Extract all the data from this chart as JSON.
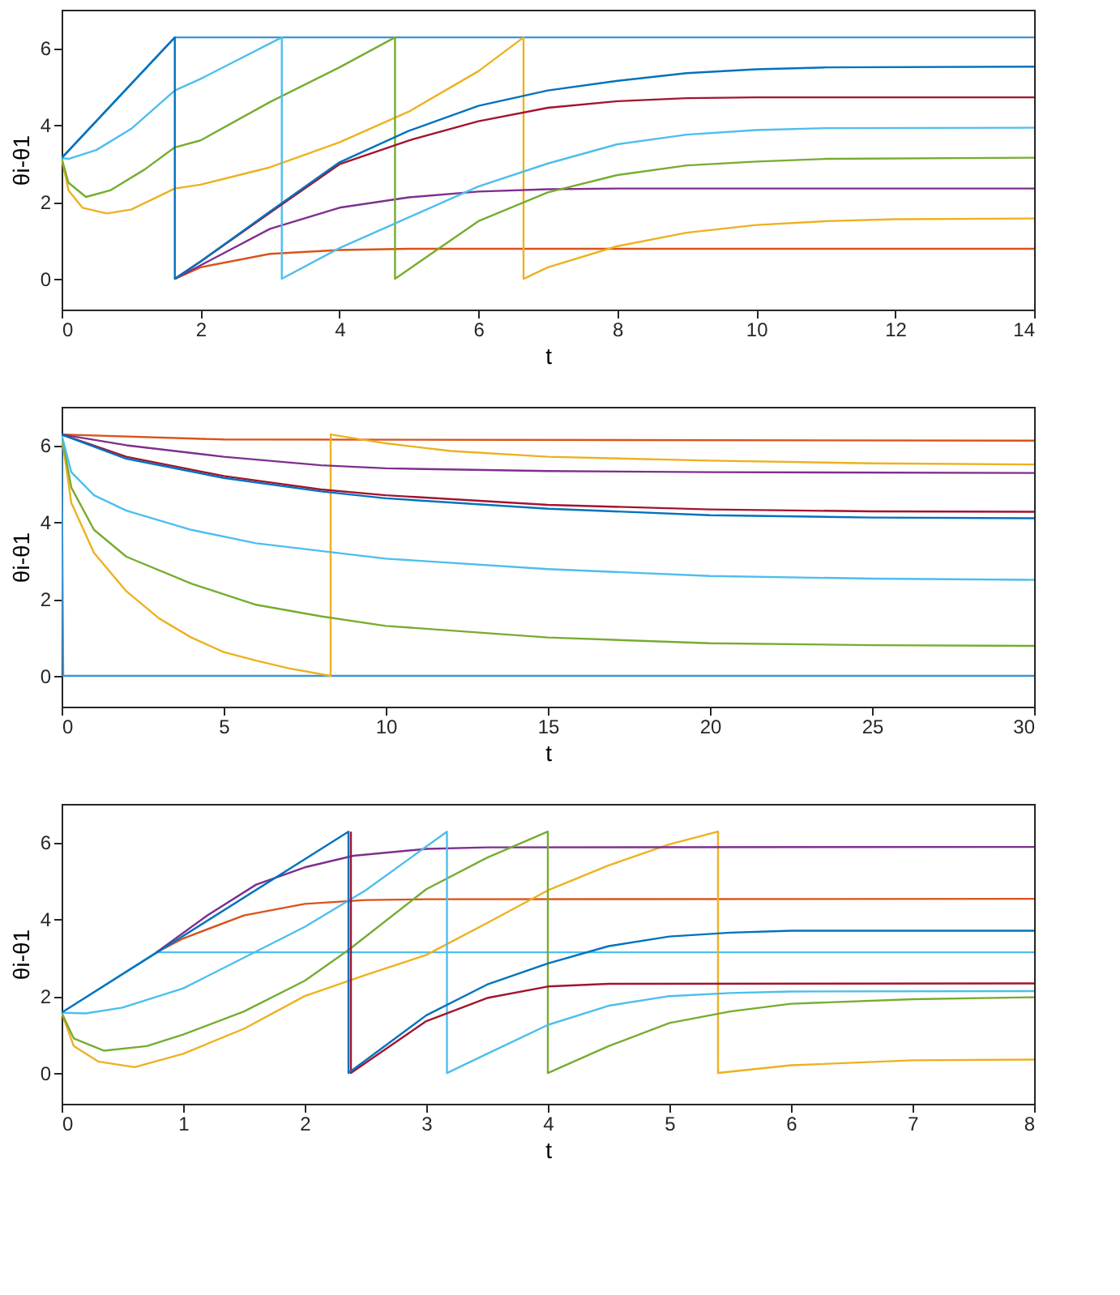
{
  "chart_data": [
    {
      "type": "line",
      "xlabel": "t",
      "ylabel": "θi-θ1",
      "xlim": [
        0,
        14
      ],
      "xticks": [
        0,
        2,
        4,
        6,
        8,
        10,
        12,
        14
      ],
      "ylim": [
        -0.8,
        7
      ],
      "yticks": [
        0,
        2,
        4,
        6
      ],
      "grid": false,
      "series": [
        {
          "color": "#3d95d8",
          "x": [
            0,
            1.63,
            14
          ],
          "values": [
            3.14,
            6.28,
            6.28
          ]
        },
        {
          "color": "#d95319",
          "x": [
            1.63,
            2,
            3,
            4,
            5,
            14
          ],
          "values": [
            0,
            0.3,
            0.65,
            0.75,
            0.78,
            0.78
          ]
        },
        {
          "color": "#edb120",
          "x": [
            0,
            0.1,
            0.3,
            0.65,
            1,
            1.63,
            2,
            3,
            4,
            5,
            6,
            6.65,
            6.65,
            7,
            8,
            9,
            10,
            11,
            12,
            14
          ],
          "values": [
            3.14,
            2.3,
            1.85,
            1.7,
            1.8,
            2.35,
            2.45,
            2.9,
            3.55,
            4.35,
            5.4,
            6.28,
            0,
            0.3,
            0.85,
            1.2,
            1.4,
            1.5,
            1.55,
            1.57
          ]
        },
        {
          "color": "#7e2f8e",
          "x": [
            1.63,
            2,
            3,
            4,
            5,
            6,
            7,
            8,
            14
          ],
          "values": [
            0,
            0.35,
            1.3,
            1.85,
            2.12,
            2.27,
            2.33,
            2.35,
            2.35
          ]
        },
        {
          "color": "#77ac30",
          "x": [
            0,
            0.1,
            0.35,
            0.7,
            1.2,
            1.63,
            2,
            3,
            4,
            4.8,
            4.8,
            6,
            7,
            8,
            9,
            10,
            11,
            14
          ],
          "values": [
            3.14,
            2.5,
            2.13,
            2.3,
            2.85,
            3.42,
            3.6,
            4.6,
            5.5,
            6.28,
            0,
            1.5,
            2.25,
            2.7,
            2.95,
            3.05,
            3.12,
            3.15
          ]
        },
        {
          "color": "#4dbeee",
          "x": [
            0,
            0.1,
            0.5,
            1,
            1.63,
            2,
            3.17,
            3.17,
            4,
            5,
            6,
            7,
            8,
            9,
            10,
            11,
            14
          ],
          "values": [
            3.14,
            3.12,
            3.35,
            3.9,
            4.9,
            5.2,
            6.28,
            0,
            0.8,
            1.6,
            2.4,
            3.0,
            3.5,
            3.75,
            3.87,
            3.92,
            3.93
          ]
        },
        {
          "color": "#a2142f",
          "x": [
            1.63,
            2,
            3,
            4,
            5,
            6,
            7,
            8,
            9,
            10,
            14
          ],
          "values": [
            0,
            0.45,
            1.72,
            2.98,
            3.6,
            4.1,
            4.45,
            4.62,
            4.7,
            4.72,
            4.72
          ]
        },
        {
          "color": "#0072bd",
          "x": [
            0,
            1.63,
            1.63,
            2,
            3,
            4,
            5,
            6,
            7,
            8,
            9,
            10,
            11,
            14
          ],
          "values": [
            3.14,
            6.28,
            0,
            0.45,
            1.75,
            3.03,
            3.85,
            4.5,
            4.9,
            5.15,
            5.35,
            5.45,
            5.5,
            5.52
          ]
        }
      ]
    },
    {
      "type": "line",
      "xlabel": "t",
      "ylabel": "θi-θ1",
      "xlim": [
        0,
        30
      ],
      "xticks": [
        0,
        5,
        10,
        15,
        20,
        25,
        30
      ],
      "ylim": [
        -0.8,
        7
      ],
      "yticks": [
        0,
        2,
        4,
        6
      ],
      "grid": false,
      "series": [
        {
          "color": "#3d95d8",
          "x": [
            0,
            0.05,
            30
          ],
          "values": [
            6.28,
            0,
            0
          ]
        },
        {
          "color": "#d95319",
          "x": [
            0,
            5,
            30
          ],
          "values": [
            6.28,
            6.15,
            6.12
          ]
        },
        {
          "color": "#edb120",
          "x": [
            0,
            0.3,
            1,
            2,
            3,
            4,
            5,
            6,
            7,
            8.3,
            8.3,
            10,
            12,
            15,
            20,
            25,
            30
          ],
          "values": [
            6.28,
            4.5,
            3.2,
            2.2,
            1.5,
            1.0,
            0.62,
            0.4,
            0.2,
            0,
            6.28,
            6.05,
            5.85,
            5.7,
            5.6,
            5.53,
            5.5
          ]
        },
        {
          "color": "#7e2f8e",
          "x": [
            0,
            2,
            5,
            8,
            10,
            15,
            20,
            30
          ],
          "values": [
            6.28,
            6.0,
            5.7,
            5.48,
            5.4,
            5.33,
            5.3,
            5.28
          ]
        },
        {
          "color": "#77ac30",
          "x": [
            0,
            0.3,
            1,
            2,
            4,
            6,
            8,
            10,
            15,
            20,
            25,
            30
          ],
          "values": [
            6.28,
            4.9,
            3.8,
            3.1,
            2.4,
            1.85,
            1.55,
            1.3,
            1.0,
            0.85,
            0.8,
            0.78
          ]
        },
        {
          "color": "#4dbeee",
          "x": [
            0,
            0.3,
            1,
            2,
            4,
            6,
            8,
            10,
            15,
            20,
            25,
            30
          ],
          "values": [
            6.28,
            5.3,
            4.7,
            4.3,
            3.8,
            3.45,
            3.25,
            3.05,
            2.78,
            2.6,
            2.53,
            2.5
          ]
        },
        {
          "color": "#a2142f",
          "x": [
            0,
            2,
            5,
            8,
            10,
            15,
            20,
            25,
            30
          ],
          "values": [
            6.28,
            5.7,
            5.2,
            4.85,
            4.7,
            4.45,
            4.33,
            4.28,
            4.27
          ]
        },
        {
          "color": "#0072bd",
          "x": [
            0,
            2,
            5,
            8,
            10,
            15,
            20,
            25,
            30
          ],
          "values": [
            6.28,
            5.65,
            5.15,
            4.8,
            4.62,
            4.35,
            4.18,
            4.12,
            4.1
          ]
        }
      ]
    },
    {
      "type": "line",
      "xlabel": "t",
      "ylabel": "θi-θ1",
      "xlim": [
        0,
        8
      ],
      "xticks": [
        0,
        1,
        2,
        3,
        4,
        5,
        6,
        7,
        8
      ],
      "ylim": [
        -0.8,
        7
      ],
      "yticks": [
        0,
        2,
        4,
        6
      ],
      "grid": false,
      "series": [
        {
          "color": "#4dbeee",
          "x": [
            0,
            0.78,
            8
          ],
          "values": [
            1.57,
            3.14,
            3.14
          ]
        },
        {
          "color": "#d95319",
          "x": [
            0.78,
            1,
            1.5,
            2,
            2.5,
            3,
            8
          ],
          "values": [
            3.14,
            3.5,
            4.1,
            4.4,
            4.5,
            4.52,
            4.53
          ]
        },
        {
          "color": "#edb120",
          "x": [
            0,
            0.1,
            0.3,
            0.6,
            1,
            1.5,
            2,
            2.5,
            3,
            3.5,
            4,
            4.5,
            5,
            5.4,
            5.4,
            6,
            7,
            8
          ],
          "values": [
            1.57,
            0.7,
            0.3,
            0.15,
            0.5,
            1.15,
            2.0,
            2.55,
            3.07,
            3.9,
            4.75,
            5.4,
            5.95,
            6.28,
            0,
            0.2,
            0.33,
            0.35
          ]
        },
        {
          "color": "#7e2f8e",
          "x": [
            0.78,
            1.2,
            1.6,
            2,
            2.4,
            3,
            3.5,
            8
          ],
          "values": [
            3.14,
            4.1,
            4.9,
            5.35,
            5.65,
            5.83,
            5.87,
            5.88
          ]
        },
        {
          "color": "#77ac30",
          "x": [
            0,
            0.1,
            0.35,
            0.7,
            1,
            1.5,
            2,
            2.36,
            3,
            3.5,
            4,
            4,
            4.5,
            5,
            5.5,
            6,
            7,
            8
          ],
          "values": [
            1.57,
            0.9,
            0.58,
            0.7,
            1.0,
            1.6,
            2.4,
            3.2,
            4.78,
            5.6,
            6.28,
            0,
            0.7,
            1.3,
            1.6,
            1.8,
            1.92,
            1.97
          ]
        },
        {
          "color": "#4dbeee",
          "x": [
            0,
            0.2,
            0.5,
            1,
            1.5,
            2,
            2.5,
            3.17,
            3.17,
            3.5,
            4,
            4.5,
            5,
            5.5,
            6,
            8
          ],
          "values": [
            1.57,
            1.55,
            1.7,
            2.2,
            3.0,
            3.8,
            4.75,
            6.28,
            0,
            0.5,
            1.25,
            1.75,
            2.0,
            2.08,
            2.12,
            2.13
          ]
        },
        {
          "color": "#a2142f",
          "x": [
            2.38,
            2.38,
            3,
            3.5,
            4,
            4.5,
            8
          ],
          "values": [
            6.28,
            0,
            1.35,
            1.95,
            2.25,
            2.32,
            2.33
          ]
        },
        {
          "color": "#0072bd",
          "x": [
            0,
            2.36,
            2.36,
            3,
            3.5,
            4,
            4.5,
            5,
            5.5,
            6,
            8
          ],
          "values": [
            1.57,
            6.28,
            0,
            1.5,
            2.3,
            2.85,
            3.3,
            3.55,
            3.65,
            3.7,
            3.7
          ]
        }
      ]
    }
  ]
}
